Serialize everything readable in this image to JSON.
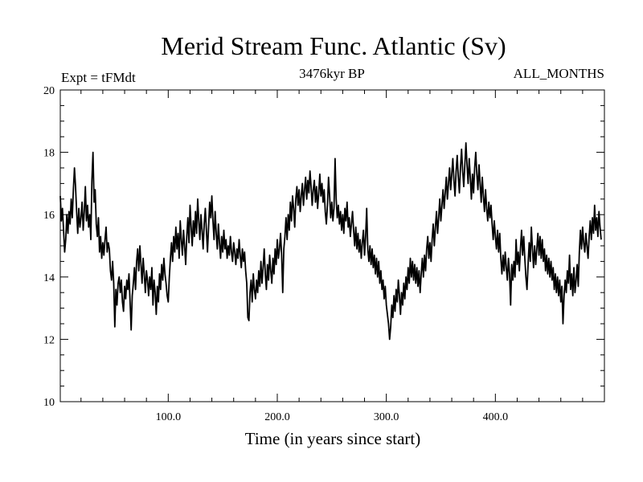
{
  "chart_data": {
    "type": "line",
    "title": "Merid Stream Func. Atlantic (Sv)",
    "subtitle_left": "Expt = tFMdt",
    "subtitle_center": "3476kyr BP",
    "subtitle_right": "ALL_MONTHS",
    "xlabel": "Time (in years since start)",
    "ylabel": "",
    "xlim": [
      1,
      500
    ],
    "ylim": [
      10,
      20
    ],
    "x_ticks": [
      100,
      200,
      300,
      400
    ],
    "x_tick_labels": [
      "100.0",
      "200.0",
      "300.0",
      "400.0"
    ],
    "y_ticks": [
      10,
      12,
      14,
      16,
      18,
      20
    ],
    "y_tick_labels": [
      "10",
      "12",
      "14",
      "16",
      "18",
      "20"
    ],
    "grid": false,
    "series": [
      {
        "name": "Merid Stream Func. Atlantic",
        "color": "#000000",
        "x_start": 1,
        "x_step": 1,
        "values": [
          16.6,
          15.8,
          16.2,
          15.5,
          14.8,
          15.2,
          16.0,
          15.4,
          16.1,
          15.7,
          16.5,
          15.9,
          16.8,
          17.5,
          16.9,
          16.1,
          15.4,
          16.2,
          15.6,
          15.9,
          16.4,
          15.5,
          16.1,
          16.9,
          15.8,
          16.3,
          15.6,
          16.0,
          15.2,
          17.1,
          18.0,
          16.4,
          16.8,
          15.7,
          15.3,
          15.9,
          14.8,
          15.3,
          14.6,
          15.1,
          14.7,
          15.2,
          15.6,
          14.8,
          15.1,
          14.9,
          14.2,
          13.9,
          14.5,
          13.8,
          12.4,
          13.6,
          13.1,
          13.8,
          14.0,
          13.5,
          13.9,
          13.2,
          12.9,
          13.7,
          13.3,
          13.9,
          13.6,
          14.1,
          13.2,
          12.3,
          13.4,
          13.8,
          14.3,
          13.6,
          14.5,
          14.9,
          14.2,
          15.0,
          14.4,
          13.8,
          14.6,
          14.1,
          13.5,
          14.2,
          13.9,
          13.4,
          14.0,
          13.6,
          14.3,
          13.1,
          13.9,
          13.5,
          12.8,
          13.7,
          13.2,
          14.1,
          13.6,
          14.4,
          13.9,
          14.6,
          14.1,
          13.8,
          13.4,
          13.2,
          14.0,
          14.6,
          15.1,
          14.5,
          15.3,
          14.8,
          15.6,
          14.9,
          15.4,
          14.6,
          15.8,
          15.2,
          14.7,
          15.5,
          15.0,
          14.4,
          15.3,
          15.9,
          15.1,
          16.3,
          15.6,
          15.0,
          15.8,
          15.3,
          16.1,
          15.4,
          16.5,
          15.8,
          15.2,
          16.0,
          15.5,
          14.9,
          15.7,
          16.2,
          15.5,
          14.8,
          15.6,
          16.4,
          15.9,
          16.6,
          15.8,
          15.2,
          16.1,
          15.4,
          14.9,
          15.7,
          15.1,
          14.6,
          15.3,
          14.8,
          15.5,
          14.9,
          15.2,
          14.6,
          15.0,
          14.7,
          15.3,
          14.8,
          14.5,
          15.1,
          14.8,
          14.4,
          14.9,
          14.6,
          15.2,
          14.7,
          14.3,
          14.9,
          14.5,
          14.8,
          14.2,
          13.8,
          12.7,
          12.6,
          13.5,
          13.9,
          13.2,
          14.1,
          13.6,
          13.3,
          13.9,
          13.5,
          14.2,
          13.7,
          14.5,
          13.8,
          14.3,
          14.9,
          14.1,
          13.6,
          14.4,
          13.9,
          14.7,
          14.2,
          13.8,
          14.6,
          14.1,
          14.9,
          14.4,
          15.2,
          14.6,
          14.9,
          15.4,
          14.7,
          13.5,
          14.9,
          15.3,
          15.9,
          15.2,
          16.0,
          15.5,
          16.4,
          15.8,
          16.6,
          16.2,
          15.6,
          16.5,
          16.9,
          16.3,
          16.8,
          16.1,
          16.6,
          17.0,
          16.3,
          16.8,
          17.2,
          16.5,
          17.1,
          16.7,
          17.4,
          16.9,
          16.3,
          16.8,
          17.1,
          16.4,
          16.9,
          16.2,
          16.7,
          17.3,
          16.6,
          17.0,
          16.4,
          16.8,
          16.1,
          15.7,
          16.3,
          17.2,
          16.6,
          15.9,
          16.4,
          15.8,
          16.2,
          17.8,
          16.5,
          15.9,
          16.3,
          15.7,
          16.1,
          15.5,
          16.0,
          15.4,
          16.2,
          15.8,
          16.4,
          15.6,
          15.9,
          15.3,
          15.7,
          16.1,
          15.5,
          15.0,
          15.6,
          14.9,
          15.4,
          14.8,
          15.2,
          14.6,
          15.1,
          15.5,
          14.7,
          15.3,
          16.2,
          14.9,
          14.5,
          15.0,
          14.4,
          14.9,
          14.3,
          14.7,
          14.1,
          14.6,
          14.0,
          14.5,
          13.8,
          14.2,
          13.6,
          13.9,
          13.3,
          13.7,
          13.1,
          12.8,
          12.5,
          12.0,
          12.4,
          13.1,
          12.7,
          13.4,
          12.9,
          13.6,
          13.2,
          13.9,
          13.4,
          12.8,
          13.5,
          13.1,
          13.8,
          13.3,
          14.0,
          13.6,
          14.3,
          13.8,
          14.6,
          14.0,
          14.5,
          13.9,
          14.4,
          13.8,
          14.3,
          13.7,
          14.2,
          13.5,
          14.1,
          14.6,
          14.0,
          14.7,
          14.2,
          14.9,
          15.3,
          14.6,
          15.1,
          14.5,
          15.2,
          15.7,
          15.0,
          15.6,
          16.1,
          15.4,
          15.9,
          16.5,
          15.8,
          16.3,
          16.8,
          16.2,
          16.7,
          17.2,
          16.5,
          17.0,
          17.5,
          16.8,
          17.3,
          17.8,
          17.1,
          16.6,
          17.4,
          17.9,
          17.2,
          16.7,
          17.5,
          18.1,
          17.4,
          16.9,
          17.6,
          18.3,
          17.6,
          17.0,
          17.8,
          17.2,
          16.5,
          17.3,
          16.7,
          17.5,
          18.0,
          17.3,
          16.8,
          17.6,
          17.0,
          16.4,
          17.2,
          16.6,
          16.1,
          16.8,
          16.2,
          15.8,
          16.4,
          15.9,
          16.3,
          15.7,
          15.2,
          15.8,
          15.3,
          14.9,
          15.5,
          14.8,
          15.4,
          14.6,
          14.1,
          14.7,
          14.2,
          14.8,
          14.3,
          13.9,
          14.6,
          14.1,
          13.1,
          14.4,
          13.9,
          14.5,
          14.0,
          15.2,
          14.4,
          14.8,
          14.2,
          14.9,
          15.5,
          14.7,
          15.3,
          14.6,
          14.0,
          13.6,
          14.4,
          15.1,
          14.5,
          15.6,
          14.9,
          14.3,
          15.0,
          14.4,
          14.9,
          15.4,
          14.7,
          15.3,
          14.6,
          15.2,
          14.5,
          14.9,
          14.2,
          14.7,
          14.1,
          14.6,
          14.0,
          14.5,
          13.9,
          14.3,
          13.6,
          14.1,
          13.5,
          14.0,
          13.4,
          13.9,
          13.2,
          13.7,
          12.5,
          13.4,
          13.9,
          13.5,
          14.2,
          13.8,
          14.7,
          13.6,
          14.1,
          13.4,
          14.3,
          13.5,
          13.9,
          14.4,
          13.7,
          14.8,
          15.5,
          14.9,
          15.6,
          15.1,
          14.8,
          15.4,
          15.0,
          14.6,
          15.3,
          15.8,
          15.2,
          15.9,
          15.4,
          16.3,
          15.5,
          15.9,
          15.3,
          16.1,
          15.6,
          15.2
        ]
      }
    ]
  }
}
